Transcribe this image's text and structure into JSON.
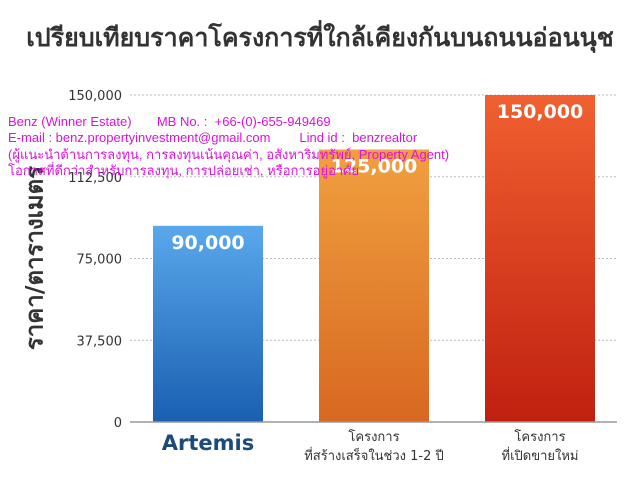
{
  "chart_data": {
    "type": "bar",
    "title": "เปรียบเทียบราคาโครงการที่ใกล้เคียงกันบนถนนอ่อนนุช",
    "ylabel": "ราคา/ตารางเมตร",
    "xlabel": "",
    "categories": [
      "Artemis",
      "โครงการ\nที่สร้างเสร็จในช่วง 1-2 ปี",
      "โครงการ\nที่เปิดขายใหม่"
    ],
    "values": [
      90000,
      125000,
      150000
    ],
    "data_labels": [
      "90,000",
      "125,000",
      "150,000"
    ],
    "ylim": [
      0,
      150000
    ],
    "yticks": [
      "0",
      "37,500",
      "75,000",
      "112,500",
      "150,000"
    ],
    "grid": true,
    "colors": [
      [
        "#5aa8ec",
        "#1a5fb0"
      ],
      [
        "#f0a040",
        "#d86820"
      ],
      [
        "#f06030",
        "#c02010"
      ]
    ]
  },
  "watermark": {
    "lines": [
      "Benz (Winner Estate)       MB No. :  +66-(0)-655-949469",
      "E-mail : benz.propertyinvestment@gmail.com        Lind id :  benzrealtor",
      "(ผู้แนะนำด้านการลงทุน, การลงทุนเน้นคุณค่า, อสังหาริมทรัพย์, Property Agent)",
      "โอกาสที่ดีกว่าสำหรับการลงทุน, การปล่อยเช่า, หรือการอยู่อาศัย"
    ]
  }
}
